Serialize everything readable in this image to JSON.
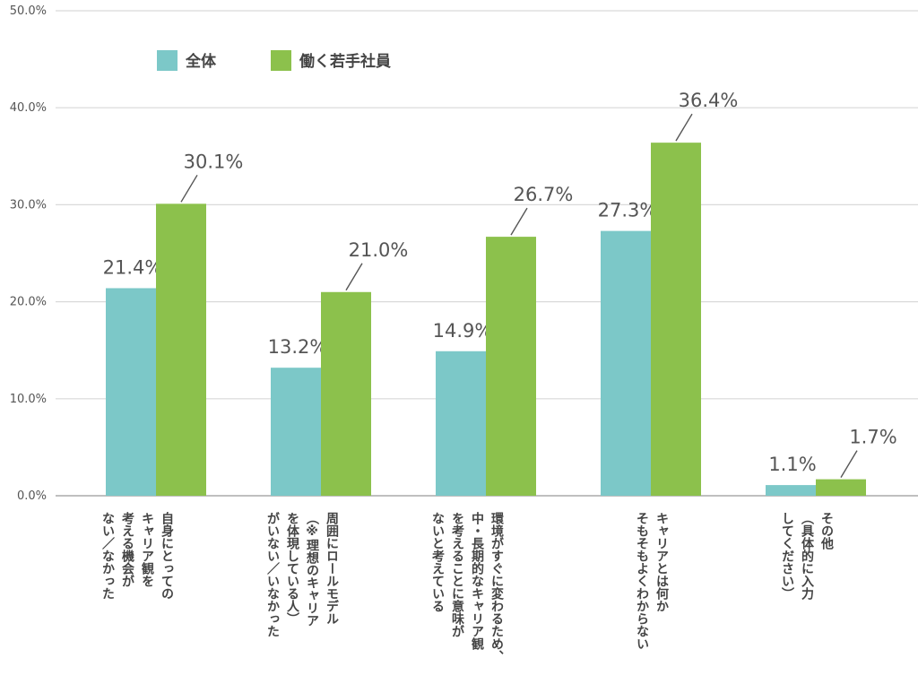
{
  "chart_data": {
    "type": "bar",
    "categories": [
      [
        "自身にとっての",
        "キャリア観を",
        "考える機会が",
        "ない／なかった"
      ],
      [
        "周囲にロールモデル",
        "（※理想のキャリア",
        "を体現している人）",
        "がいない／いなかった"
      ],
      [
        "環境がすぐに変わるため、",
        "中・長期的なキャリア観",
        "を考えることに意味が",
        "ないと考えている"
      ],
      [
        "キャリアとは何か",
        "そもそもよくわからない"
      ],
      [
        "その他",
        "（具体的に入力",
        "してください）"
      ]
    ],
    "series": [
      {
        "name": "全体",
        "color": "#7cc8c8",
        "values": [
          21.4,
          13.2,
          14.9,
          27.3,
          1.1
        ],
        "labels": [
          "21.4%",
          "13.2%",
          "14.9%",
          "27.3%",
          "1.1%"
        ]
      },
      {
        "name": "働く若手社員",
        "color": "#8cc14c",
        "values": [
          30.1,
          21.0,
          26.7,
          36.4,
          1.7
        ],
        "labels": [
          "30.1%",
          "21.0%",
          "26.7%",
          "36.4%",
          "1.7%"
        ]
      }
    ],
    "yticks": [
      "0.0%",
      "10.0%",
      "20.0%",
      "30.0%",
      "40.0%",
      "50.0%"
    ],
    "ylim": [
      0,
      50
    ],
    "grid": true,
    "legend": "top-left"
  }
}
